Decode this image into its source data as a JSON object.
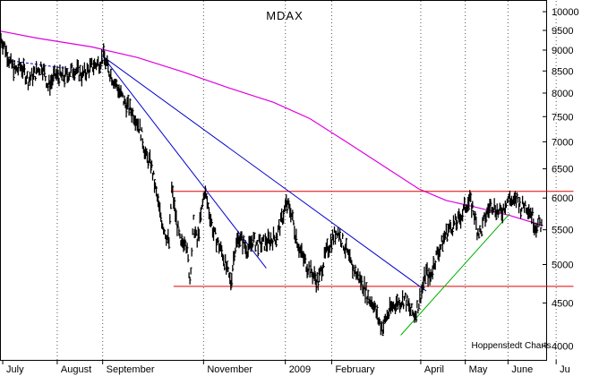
{
  "chart_data": {
    "type": "bar",
    "subtype": "ohlc-daily",
    "title": "MDAX",
    "credit": "Hoppenstedt Charts",
    "y_scale": "log",
    "ylim": [
      3850,
      10300
    ],
    "y_ticks": [
      "10000",
      "9500",
      "9000",
      "8500",
      "8000",
      "7500",
      "7000",
      "6500",
      "6000",
      "5500",
      "5000",
      "4500",
      "4000"
    ],
    "y_tick_values": [
      10000,
      9500,
      9000,
      8500,
      8000,
      7500,
      7000,
      6500,
      6000,
      5500,
      5000,
      4500,
      4000
    ],
    "x_axis_months": [
      "July",
      "August",
      "September",
      "November",
      "2009",
      "February",
      "April",
      "May",
      "June",
      "Ju"
    ],
    "x_axis_month_index": [
      2,
      62,
      112,
      223,
      313,
      364,
      462,
      511,
      558,
      611
    ],
    "grid": "vertical dotted at month starts",
    "colors": {
      "price": "#000000",
      "moving_average": "#e000e0",
      "horizontal_levels": "#e00000",
      "downtrend_lines": "#0000cc",
      "uptrend_line": "#00b000",
      "early_trendline": "#0000cc"
    },
    "moving_average_200d": {
      "name": "",
      "points": [
        [
          0,
          9480
        ],
        [
          40,
          9300
        ],
        [
          100,
          9080
        ],
        [
          150,
          8820
        ],
        [
          200,
          8480
        ],
        [
          250,
          8120
        ],
        [
          300,
          7800
        ],
        [
          340,
          7460
        ],
        [
          380,
          7000
        ],
        [
          420,
          6560
        ],
        [
          460,
          6150
        ],
        [
          490,
          5960
        ],
        [
          520,
          5860
        ],
        [
          560,
          5720
        ],
        [
          595,
          5570
        ]
      ]
    },
    "horizontal_levels": [
      {
        "value": 6110,
        "from": 187,
        "to": 630
      },
      {
        "value": 4710,
        "from": 190,
        "to": 630
      }
    ],
    "trend_lines": [
      {
        "color_key": "downtrend_lines",
        "from": [
          112,
          8850
        ],
        "to": [
          292,
          4950
        ]
      },
      {
        "color_key": "downtrend_lines",
        "from": [
          112,
          8850
        ],
        "to": [
          468,
          4650
        ]
      },
      {
        "color_key": "early_trendline",
        "from": [
          8,
          8750
        ],
        "to": [
          75,
          8550
        ]
      },
      {
        "color_key": "uptrend_line",
        "from": [
          440,
          4120
        ],
        "to": [
          560,
          5750
        ]
      }
    ],
    "price_anchors": [
      [
        0,
        9300
      ],
      [
        5,
        9050
      ],
      [
        10,
        8700
      ],
      [
        16,
        8500
      ],
      [
        22,
        8620
      ],
      [
        30,
        8300
      ],
      [
        38,
        8450
      ],
      [
        45,
        8650
      ],
      [
        52,
        8150
      ],
      [
        60,
        8400
      ],
      [
        70,
        8350
      ],
      [
        80,
        8550
      ],
      [
        90,
        8400
      ],
      [
        100,
        8600
      ],
      [
        108,
        8700
      ],
      [
        113,
        8850
      ],
      [
        118,
        8550
      ],
      [
        124,
        8300
      ],
      [
        130,
        8050
      ],
      [
        136,
        7800
      ],
      [
        142,
        7650
      ],
      [
        148,
        7500
      ],
      [
        154,
        7200
      ],
      [
        160,
        6700
      ],
      [
        165,
        6600
      ],
      [
        170,
        6150
      ],
      [
        175,
        5750
      ],
      [
        180,
        5500
      ],
      [
        185,
        5300
      ],
      [
        188,
        6150
      ],
      [
        193,
        5650
      ],
      [
        198,
        5250
      ],
      [
        203,
        5400
      ],
      [
        208,
        4800
      ],
      [
        212,
        5600
      ],
      [
        216,
        5300
      ],
      [
        221,
        5800
      ],
      [
        224,
        6120
      ],
      [
        229,
        5800
      ],
      [
        234,
        5450
      ],
      [
        239,
        5300
      ],
      [
        244,
        5150
      ],
      [
        249,
        4900
      ],
      [
        253,
        4750
      ],
      [
        257,
        5200
      ],
      [
        262,
        5400
      ],
      [
        267,
        5300
      ],
      [
        272,
        5200
      ],
      [
        277,
        5350
      ],
      [
        282,
        5280
      ],
      [
        290,
        5300
      ],
      [
        297,
        5350
      ],
      [
        303,
        5400
      ],
      [
        308,
        5600
      ],
      [
        314,
        5900
      ],
      [
        319,
        5800
      ],
      [
        324,
        5450
      ],
      [
        329,
        5200
      ],
      [
        334,
        5050
      ],
      [
        339,
        4950
      ],
      [
        344,
        4850
      ],
      [
        349,
        4760
      ],
      [
        354,
        5000
      ],
      [
        359,
        5200
      ],
      [
        364,
        5350
      ],
      [
        370,
        5500
      ],
      [
        375,
        5350
      ],
      [
        380,
        5200
      ],
      [
        385,
        5000
      ],
      [
        390,
        4900
      ],
      [
        395,
        4800
      ],
      [
        400,
        4700
      ],
      [
        405,
        4550
      ],
      [
        410,
        4500
      ],
      [
        415,
        4300
      ],
      [
        420,
        4200
      ],
      [
        425,
        4350
      ],
      [
        430,
        4450
      ],
      [
        435,
        4500
      ],
      [
        440,
        4520
      ],
      [
        445,
        4550
      ],
      [
        450,
        4420
      ],
      [
        455,
        4350
      ],
      [
        460,
        4500
      ],
      [
        464,
        4700
      ],
      [
        468,
        4900
      ],
      [
        472,
        4800
      ],
      [
        476,
        5000
      ],
      [
        480,
        5150
      ],
      [
        484,
        5250
      ],
      [
        488,
        5400
      ],
      [
        492,
        5500
      ],
      [
        496,
        5550
      ],
      [
        500,
        5600
      ],
      [
        504,
        5650
      ],
      [
        508,
        5750
      ],
      [
        512,
        5900
      ],
      [
        516,
        5950
      ],
      [
        520,
        5800
      ],
      [
        524,
        5500
      ],
      [
        528,
        5450
      ],
      [
        532,
        5650
      ],
      [
        536,
        5800
      ],
      [
        540,
        5900
      ],
      [
        544,
        5850
      ],
      [
        548,
        5750
      ],
      [
        552,
        5800
      ],
      [
        556,
        5950
      ],
      [
        560,
        6000
      ],
      [
        564,
        5900
      ],
      [
        568,
        6000
      ],
      [
        572,
        5850
      ],
      [
        576,
        5900
      ],
      [
        580,
        5850
      ],
      [
        584,
        5750
      ],
      [
        588,
        5550
      ],
      [
        592,
        5600
      ],
      [
        595,
        5550
      ]
    ],
    "x_count": 600
  }
}
